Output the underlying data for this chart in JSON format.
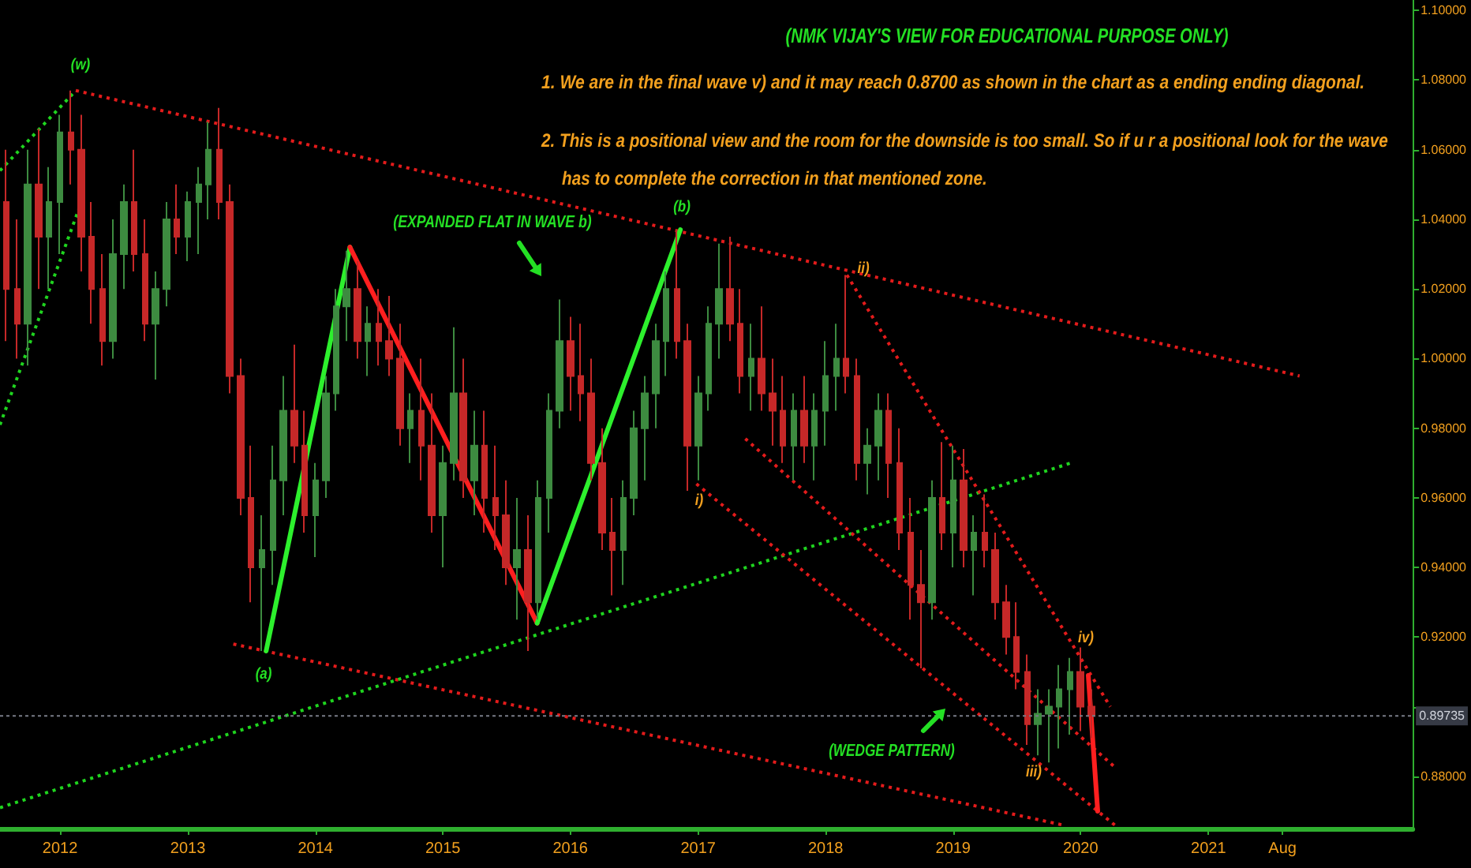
{
  "chart_data": {
    "type": "candlestick",
    "title": "(NMK VIJAY'S VIEW FOR EDUCATIONAL PURPOSE ONLY)",
    "annotations": [
      "1. We are in the final wave v) and it may reach 0.8700 as shown in the chart as a ending ending diagonal.",
      "2. This is a positional view and the room for the downside is too small. So if u r a positional look for the wave\nhas to complete the correction in that mentioned zone.",
      "(w)",
      "(a)",
      "(b)",
      "i)",
      "ii)",
      "iii)",
      "iv)",
      "(EXPANDED FLAT IN WAVE b)",
      "(WEDGE PATTERN)"
    ],
    "x": [
      "2011-08",
      "2011-09",
      "2011-10",
      "2011-11",
      "2011-12",
      "2012-01",
      "2012-02",
      "2012-03",
      "2012-04",
      "2012-05",
      "2012-06",
      "2012-07",
      "2012-08",
      "2012-09",
      "2012-10",
      "2012-11",
      "2012-12",
      "2013-01",
      "2013-02",
      "2013-03",
      "2013-04",
      "2013-05",
      "2013-06",
      "2013-07",
      "2013-08",
      "2013-09",
      "2013-10",
      "2013-11",
      "2013-12",
      "2014-01",
      "2014-02",
      "2014-03",
      "2014-04",
      "2014-05",
      "2014-06",
      "2014-07",
      "2014-08",
      "2014-09",
      "2014-10",
      "2014-11",
      "2014-12",
      "2015-01",
      "2015-02",
      "2015-03",
      "2015-04",
      "2015-05",
      "2015-06",
      "2015-07",
      "2015-08",
      "2015-09",
      "2015-10",
      "2015-11",
      "2015-12",
      "2016-01",
      "2016-02",
      "2016-03",
      "2016-04",
      "2016-05",
      "2016-06",
      "2016-07",
      "2016-08",
      "2016-09",
      "2016-10",
      "2016-11",
      "2016-12",
      "2017-01",
      "2017-02",
      "2017-03",
      "2017-04",
      "2017-05",
      "2017-06",
      "2017-07",
      "2017-08",
      "2017-09",
      "2017-10",
      "2017-11",
      "2017-12",
      "2018-01",
      "2018-02",
      "2018-03",
      "2018-04",
      "2018-05",
      "2018-06",
      "2018-07",
      "2018-08",
      "2018-09",
      "2018-10",
      "2018-11",
      "2018-12",
      "2019-01",
      "2019-02",
      "2019-03",
      "2019-04",
      "2019-05",
      "2019-06",
      "2019-07",
      "2019-08",
      "2019-09",
      "2019-10",
      "2019-11",
      "2019-12",
      "2020-01",
      "2020-02"
    ],
    "ohlc": [
      [
        1.045,
        1.06,
        1.005,
        1.02
      ],
      [
        1.02,
        1.04,
        1.0,
        1.01
      ],
      [
        1.01,
        1.06,
        0.998,
        1.05
      ],
      [
        1.05,
        1.066,
        1.02,
        1.035
      ],
      [
        1.035,
        1.055,
        1.02,
        1.045
      ],
      [
        1.045,
        1.07,
        1.03,
        1.065
      ],
      [
        1.065,
        1.077,
        1.05,
        1.06
      ],
      [
        1.06,
        1.07,
        1.025,
        1.035
      ],
      [
        1.035,
        1.045,
        1.01,
        1.02
      ],
      [
        1.02,
        1.03,
        0.998,
        1.005
      ],
      [
        1.005,
        1.04,
        1.0,
        1.03
      ],
      [
        1.03,
        1.05,
        1.02,
        1.045
      ],
      [
        1.045,
        1.06,
        1.025,
        1.03
      ],
      [
        1.03,
        1.04,
        1.005,
        1.01
      ],
      [
        1.01,
        1.025,
        0.994,
        1.02
      ],
      [
        1.02,
        1.045,
        1.015,
        1.04
      ],
      [
        1.04,
        1.05,
        1.03,
        1.035
      ],
      [
        1.035,
        1.048,
        1.028,
        1.045
      ],
      [
        1.045,
        1.055,
        1.03,
        1.05
      ],
      [
        1.05,
        1.068,
        1.04,
        1.06
      ],
      [
        1.06,
        1.072,
        1.04,
        1.045
      ],
      [
        1.045,
        1.05,
        0.99,
        0.995
      ],
      [
        0.995,
        1.0,
        0.955,
        0.96
      ],
      [
        0.96,
        0.975,
        0.93,
        0.94
      ],
      [
        0.94,
        0.955,
        0.916,
        0.945
      ],
      [
        0.945,
        0.975,
        0.935,
        0.965
      ],
      [
        0.965,
        0.995,
        0.955,
        0.985
      ],
      [
        0.985,
        1.004,
        0.97,
        0.975
      ],
      [
        0.975,
        0.985,
        0.95,
        0.955
      ],
      [
        0.955,
        0.97,
        0.943,
        0.965
      ],
      [
        0.965,
        0.995,
        0.96,
        0.99
      ],
      [
        0.99,
        1.02,
        0.985,
        1.015
      ],
      [
        1.015,
        1.031,
        1.005,
        1.02
      ],
      [
        1.02,
        1.028,
        1.0,
        1.005
      ],
      [
        1.005,
        1.015,
        0.995,
        1.01
      ],
      [
        1.01,
        1.02,
        0.998,
        1.005
      ],
      [
        1.005,
        1.018,
        0.995,
        1.0
      ],
      [
        1.0,
        1.01,
        0.975,
        0.98
      ],
      [
        0.98,
        0.99,
        0.97,
        0.985
      ],
      [
        0.985,
        1.0,
        0.965,
        0.975
      ],
      [
        0.975,
        0.99,
        0.95,
        0.955
      ],
      [
        0.955,
        0.975,
        0.94,
        0.97
      ],
      [
        0.97,
        1.009,
        0.965,
        0.99
      ],
      [
        0.99,
        1.0,
        0.96,
        0.965
      ],
      [
        0.965,
        0.985,
        0.955,
        0.975
      ],
      [
        0.975,
        0.985,
        0.95,
        0.96
      ],
      [
        0.96,
        0.975,
        0.945,
        0.955
      ],
      [
        0.955,
        0.965,
        0.935,
        0.94
      ],
      [
        0.94,
        0.96,
        0.925,
        0.945
      ],
      [
        0.945,
        0.955,
        0.916,
        0.93
      ],
      [
        0.93,
        0.965,
        0.925,
        0.96
      ],
      [
        0.96,
        0.99,
        0.95,
        0.985
      ],
      [
        0.985,
        1.017,
        0.98,
        1.005
      ],
      [
        1.005,
        1.012,
        0.985,
        0.995
      ],
      [
        0.995,
        1.01,
        0.982,
        0.99
      ],
      [
        0.99,
        1.0,
        0.965,
        0.97
      ],
      [
        0.97,
        0.98,
        0.945,
        0.95
      ],
      [
        0.95,
        0.96,
        0.932,
        0.945
      ],
      [
        0.945,
        0.965,
        0.935,
        0.96
      ],
      [
        0.96,
        0.985,
        0.955,
        0.98
      ],
      [
        0.98,
        0.995,
        0.965,
        0.99
      ],
      [
        0.99,
        1.01,
        0.98,
        1.005
      ],
      [
        1.005,
        1.025,
        0.995,
        1.02
      ],
      [
        1.02,
        1.037,
        1.0,
        1.005
      ],
      [
        1.005,
        1.01,
        0.962,
        0.975
      ],
      [
        0.975,
        0.995,
        0.965,
        0.99
      ],
      [
        0.99,
        1.015,
        0.985,
        1.01
      ],
      [
        1.01,
        1.033,
        1.0,
        1.02
      ],
      [
        1.02,
        1.035,
        1.005,
        1.01
      ],
      [
        1.01,
        1.02,
        0.99,
        0.995
      ],
      [
        0.995,
        1.01,
        0.985,
        1.0
      ],
      [
        1.0,
        1.015,
        0.985,
        0.99
      ],
      [
        0.99,
        1.0,
        0.975,
        0.985
      ],
      [
        0.985,
        0.995,
        0.97,
        0.975
      ],
      [
        0.975,
        0.99,
        0.965,
        0.985
      ],
      [
        0.985,
        0.995,
        0.97,
        0.975
      ],
      [
        0.975,
        0.99,
        0.965,
        0.985
      ],
      [
        0.985,
        1.005,
        0.975,
        0.995
      ],
      [
        0.995,
        1.01,
        0.985,
        1.0
      ],
      [
        1.0,
        1.024,
        0.99,
        0.995
      ],
      [
        0.995,
        1.0,
        0.965,
        0.97
      ],
      [
        0.97,
        0.98,
        0.961,
        0.975
      ],
      [
        0.975,
        0.99,
        0.965,
        0.985
      ],
      [
        0.985,
        0.99,
        0.96,
        0.97
      ],
      [
        0.97,
        0.98,
        0.945,
        0.95
      ],
      [
        0.95,
        0.96,
        0.925,
        0.935
      ],
      [
        0.935,
        0.945,
        0.911,
        0.93
      ],
      [
        0.93,
        0.965,
        0.925,
        0.96
      ],
      [
        0.96,
        0.976,
        0.945,
        0.95
      ],
      [
        0.95,
        0.975,
        0.94,
        0.965
      ],
      [
        0.965,
        0.974,
        0.94,
        0.945
      ],
      [
        0.945,
        0.955,
        0.932,
        0.95
      ],
      [
        0.95,
        0.961,
        0.94,
        0.945
      ],
      [
        0.945,
        0.95,
        0.925,
        0.93
      ],
      [
        0.93,
        0.935,
        0.915,
        0.92
      ],
      [
        0.92,
        0.93,
        0.905,
        0.91
      ],
      [
        0.91,
        0.915,
        0.889,
        0.895
      ],
      [
        0.895,
        0.905,
        0.886,
        0.898
      ],
      [
        0.898,
        0.905,
        0.884,
        0.9
      ],
      [
        0.9,
        0.912,
        0.888,
        0.905
      ],
      [
        0.905,
        0.914,
        0.892,
        0.91
      ],
      [
        0.91,
        0.917,
        0.893,
        0.9
      ],
      [
        0.9,
        0.905,
        0.891,
        0.89735
      ]
    ],
    "colors": [
      "#c62828",
      "#c62828",
      "#3d8b40",
      "#c62828",
      "#3d8b40",
      "#3d8b40",
      "#c62828",
      "#c62828",
      "#c62828",
      "#c62828",
      "#3d8b40",
      "#3d8b40",
      "#c62828",
      "#c62828",
      "#3d8b40",
      "#3d8b40",
      "#c62828",
      "#3d8b40",
      "#3d8b40",
      "#3d8b40",
      "#c62828",
      "#c62828",
      "#c62828",
      "#c62828",
      "#3d8b40",
      "#3d8b40",
      "#3d8b40",
      "#c62828",
      "#c62828",
      "#3d8b40",
      "#3d8b40",
      "#3d8b40",
      "#3d8b40",
      "#c62828",
      "#3d8b40",
      "#c62828",
      "#c62828",
      "#c62828",
      "#3d8b40",
      "#c62828",
      "#c62828",
      "#3d8b40",
      "#3d8b40",
      "#c62828",
      "#3d8b40",
      "#c62828",
      "#c62828",
      "#c62828",
      "#3d8b40",
      "#c62828",
      "#3d8b40",
      "#3d8b40",
      "#3d8b40",
      "#c62828",
      "#c62828",
      "#c62828",
      "#c62828",
      "#c62828",
      "#3d8b40",
      "#3d8b40",
      "#3d8b40",
      "#3d8b40",
      "#3d8b40",
      "#c62828",
      "#c62828",
      "#3d8b40",
      "#3d8b40",
      "#3d8b40",
      "#c62828",
      "#c62828",
      "#3d8b40",
      "#c62828",
      "#c62828",
      "#c62828",
      "#3d8b40",
      "#c62828",
      "#3d8b40",
      "#3d8b40",
      "#3d8b40",
      "#c62828",
      "#c62828",
      "#3d8b40",
      "#3d8b40",
      "#c62828",
      "#c62828",
      "#c62828",
      "#c62828",
      "#3d8b40",
      "#c62828",
      "#3d8b40",
      "#c62828",
      "#3d8b40",
      "#c62828",
      "#c62828",
      "#c62828",
      "#c62828",
      "#c62828",
      "#3d8b40",
      "#3d8b40",
      "#3d8b40",
      "#3d8b40",
      "#c62828",
      "#c62828"
    ],
    "series": [
      {
        "type": "line",
        "x": [
          "2012-02-15",
          "2021-09-19"
        ],
        "values": [
          1.077,
          0.995
        ],
        "color": "#e31b1b",
        "line_style": "dotted"
      },
      {
        "type": "line",
        "x": [
          "2011-07-13",
          "2012-02-06"
        ],
        "values": [
          1.054,
          1.076
        ],
        "color": "#1fd41f",
        "line_style": "dotted"
      },
      {
        "type": "line",
        "x": [
          "2011-07-13",
          "2012-02-24"
        ],
        "values": [
          0.981,
          1.043
        ],
        "color": "#1fd41f",
        "line_style": "dotted"
      },
      {
        "type": "line",
        "x": [
          "2013-05-11",
          "2019-11-12"
        ],
        "values": [
          0.918,
          0.866
        ],
        "color": "#e31b1b",
        "line_style": "dotted"
      },
      {
        "type": "line",
        "x": [
          "2011-07-13",
          "2019-12-04"
        ],
        "values": [
          0.871,
          0.97
        ],
        "color": "#1fd41f",
        "line_style": "dotted"
      },
      {
        "type": "line",
        "x": [
          "2016-12-27",
          "2020-04-08"
        ],
        "values": [
          0.964,
          0.866
        ],
        "color": "#e31b1b",
        "line_style": "dotted"
      },
      {
        "type": "line",
        "x": [
          "2017-05-16",
          "2020-04-04"
        ],
        "values": [
          0.977,
          0.883
        ],
        "color": "#e31b1b",
        "line_style": "dotted"
      },
      {
        "type": "line",
        "x": [
          "2018-03-03",
          "2020-03-26"
        ],
        "values": [
          1.024,
          0.9
        ],
        "color": "#e31b1b",
        "line_style": "dotted"
      },
      {
        "type": "line",
        "x": [
          "2013-08-13",
          "2014-04-10"
        ],
        "values": [
          0.916,
          1.032
        ],
        "color": "#2df02d",
        "line_style": "solid"
      },
      {
        "type": "line",
        "x": [
          "2014-04-10",
          "2015-09-28"
        ],
        "values": [
          1.032,
          0.924
        ],
        "color": "#ff1f1f",
        "line_style": "solid"
      },
      {
        "type": "line",
        "x": [
          "2015-09-28",
          "2016-11-11"
        ],
        "values": [
          0.924,
          1.037
        ],
        "color": "#2df02d",
        "line_style": "solid"
      },
      {
        "type": "line",
        "x": [
          "2020-01-23",
          "2020-02-19"
        ],
        "values": [
          0.909,
          0.87
        ],
        "color": "#ff1f1f",
        "line_style": "solid"
      }
    ],
    "ref_lines": [
      {
        "axis": "y",
        "value": 0.89735,
        "label": "0.89735",
        "color": "#787b86",
        "line_style": "dotted"
      }
    ],
    "xlim": [
      "2011-07-13",
      "2022-08-09"
    ],
    "xticks": [
      "2012",
      "2013",
      "2014",
      "2015",
      "2016",
      "2017",
      "2018",
      "2019",
      "2020",
      "2021",
      {
        "value": "2021-08",
        "label": "Aug"
      }
    ],
    "ylim": [
      0.865,
      1.103
    ],
    "yticks": [
      {
        "value": 0.88,
        "label": "0.88000"
      },
      {
        "value": 0.9,
        "label": null
      },
      {
        "value": 0.92,
        "label": "0.92000"
      },
      {
        "value": 0.94,
        "label": "0.94000"
      },
      {
        "value": 0.96,
        "label": "0.96000"
      },
      {
        "value": 0.98,
        "label": "0.98000"
      },
      {
        "value": 1.0,
        "label": "1.00000"
      },
      {
        "value": 1.02,
        "label": "1.02000"
      },
      {
        "value": 1.04,
        "label": "1.04000"
      },
      {
        "value": 1.06,
        "label": "1.06000"
      },
      {
        "value": 1.08,
        "label": "1.08000"
      },
      {
        "value": 1.1,
        "label": "1.10000"
      }
    ],
    "marker": "none"
  }
}
